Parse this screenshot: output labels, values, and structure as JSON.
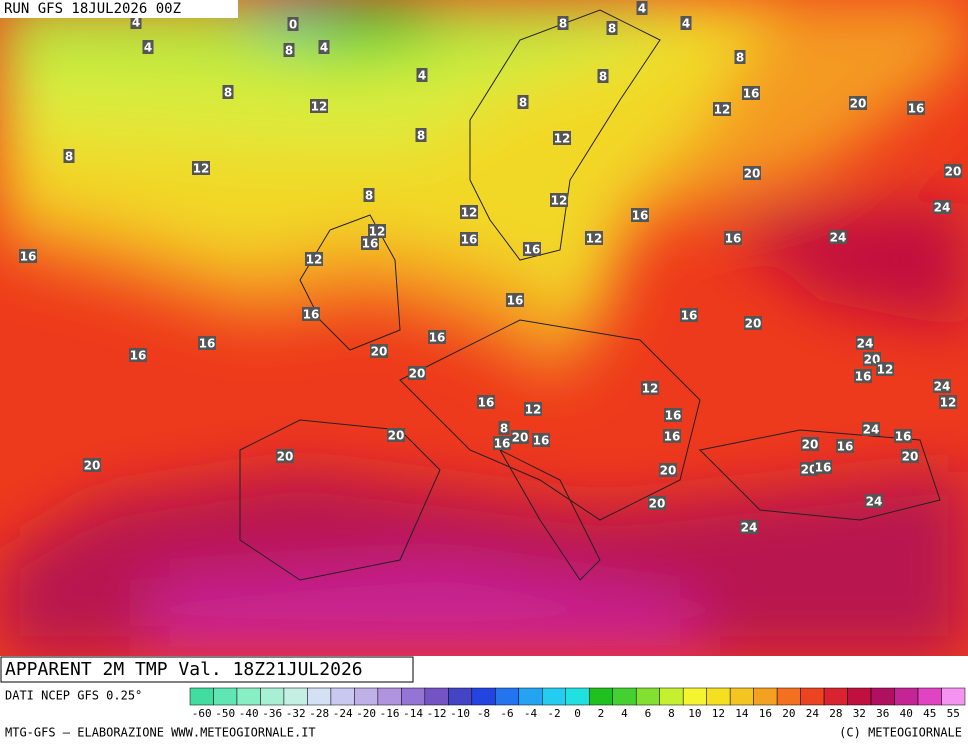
{
  "header": {
    "run": "RUN GFS 18JUL2026 00Z"
  },
  "map": {
    "labels": [
      0,
      4,
      4,
      8,
      4,
      4,
      8,
      8,
      4,
      4,
      8,
      8,
      12,
      8,
      8,
      12,
      16,
      20,
      16,
      8,
      12,
      8,
      12,
      20,
      20,
      8,
      12,
      12,
      16,
      24,
      16,
      12,
      16,
      16,
      12,
      16,
      16,
      24,
      12,
      16,
      16,
      16,
      20,
      16,
      16,
      16,
      20,
      24,
      20,
      12,
      16,
      20,
      12,
      24,
      12,
      16,
      12,
      16,
      20,
      8,
      16,
      20,
      16,
      16,
      24,
      16,
      20,
      16,
      20,
      20,
      20,
      20,
      20,
      16,
      24,
      20,
      24
    ]
  },
  "footer": {
    "title": "APPARENT 2M TMP Val. 18Z21JUL2026",
    "source": "DATI NCEP GFS 0.25°",
    "credit": "MTG-GFS — ELABORAZIONE WWW.METEOGIORNALE.IT",
    "copyright": "(C) METEOGIORNALE"
  },
  "legend": {
    "ticks": [
      -60,
      -50,
      -40,
      -36,
      -32,
      -28,
      -24,
      -20,
      -16,
      -14,
      -12,
      -10,
      -8,
      -6,
      -4,
      -2,
      0,
      2,
      4,
      6,
      8,
      10,
      12,
      14,
      16,
      20,
      24,
      28,
      32,
      36,
      40,
      45,
      55
    ],
    "colors": [
      "#40dca0",
      "#60e6b4",
      "#88eec4",
      "#a8f0d4",
      "#c4f0e4",
      "#d4e0f4",
      "#c8c8f0",
      "#c0b0e8",
      "#b094e0",
      "#9474d4",
      "#7454c4",
      "#4444c4",
      "#2444e0",
      "#2474f0",
      "#24a4f0",
      "#24ccf0",
      "#20e0e0",
      "#20c020",
      "#44d030",
      "#84e030",
      "#c4f030",
      "#f4f430",
      "#f4e020",
      "#f4c420",
      "#f4a020",
      "#f47020",
      "#ea4420",
      "#d82430",
      "#c01040",
      "#b01060",
      "#c42494",
      "#e044c0",
      "#f494f0"
    ]
  }
}
